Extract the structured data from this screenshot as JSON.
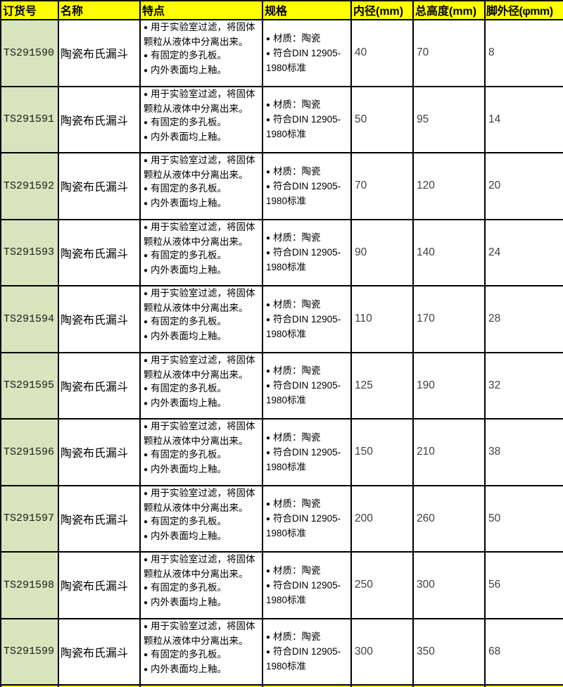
{
  "header": {
    "order_no": "订货号",
    "name": "名称",
    "features": "特点",
    "specs": "规格",
    "inner_diameter": "内径(mm)",
    "total_height": "总高度(mm)",
    "foot_outer_diameter": "脚外径(φmm)"
  },
  "product": {
    "name": "陶瓷布氏漏斗",
    "features": [
      "用于实验室过滤，将固体颗粒从液体中分离出来。",
      "有固定的多孔板。",
      "内外表面均上釉。"
    ],
    "specs": [
      "材质：陶瓷",
      "符合DIN 12905-1980标准"
    ]
  },
  "rows": [
    {
      "order_no": "TS291590",
      "inner_diameter": "40",
      "total_height": "70",
      "foot_outer_diameter": "8"
    },
    {
      "order_no": "TS291591",
      "inner_diameter": "50",
      "total_height": "95",
      "foot_outer_diameter": "14"
    },
    {
      "order_no": "TS291592",
      "inner_diameter": "70",
      "total_height": "120",
      "foot_outer_diameter": "20"
    },
    {
      "order_no": "TS291593",
      "inner_diameter": "90",
      "total_height": "140",
      "foot_outer_diameter": "24"
    },
    {
      "order_no": "TS291594",
      "inner_diameter": "110",
      "total_height": "170",
      "foot_outer_diameter": "28"
    },
    {
      "order_no": "TS291595",
      "inner_diameter": "125",
      "total_height": "190",
      "foot_outer_diameter": "32"
    },
    {
      "order_no": "TS291596",
      "inner_diameter": "150",
      "total_height": "210",
      "foot_outer_diameter": "38"
    },
    {
      "order_no": "TS291597",
      "inner_diameter": "200",
      "total_height": "260",
      "foot_outer_diameter": "50"
    },
    {
      "order_no": "TS291598",
      "inner_diameter": "250",
      "total_height": "300",
      "foot_outer_diameter": "56"
    },
    {
      "order_no": "TS291599",
      "inner_diameter": "300",
      "total_height": "350",
      "foot_outer_diameter": "68"
    }
  ],
  "colors": {
    "header_bg": "#FFFF00",
    "order_col_bg": "#D7E4BC",
    "grid": "#000000",
    "number_text": "#404040"
  }
}
